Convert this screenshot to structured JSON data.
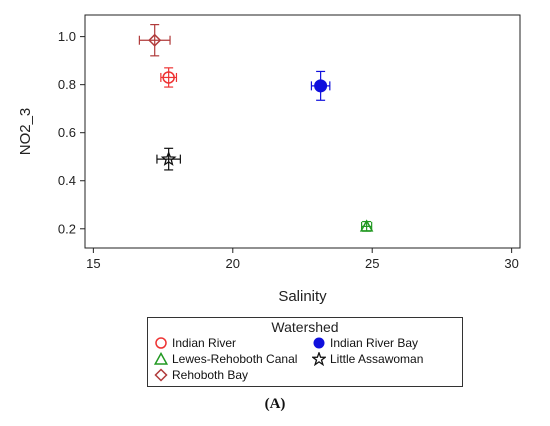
{
  "chart_data": {
    "type": "scatter",
    "xlabel": "Salinity",
    "ylabel": "NO2_3",
    "xlim": [
      14.7,
      30.3
    ],
    "ylim": [
      0.12,
      1.09
    ],
    "xticks": [
      15,
      20,
      25,
      30
    ],
    "yticks": [
      0.2,
      0.4,
      0.6,
      0.8,
      1.0
    ],
    "xtick_labels": [
      "15",
      "20",
      "25",
      "30"
    ],
    "ytick_labels": [
      "0.2",
      "0.4",
      "0.6",
      "0.8",
      "1.0"
    ],
    "grid": false,
    "series": [
      {
        "name": "Indian River",
        "marker": "open-circle",
        "color": "#ee3333",
        "x": 17.7,
        "y": 0.83,
        "xerr": 0.28,
        "yerr": 0.04
      },
      {
        "name": "Indian River Bay",
        "marker": "filled-circle",
        "color": "#1010dd",
        "x": 23.15,
        "y": 0.795,
        "xerr": 0.33,
        "yerr": 0.06
      },
      {
        "name": "Lewes-Rehoboth Canal",
        "marker": "open-triangle",
        "color": "#229922",
        "x": 24.8,
        "y": 0.21,
        "xerr": 0.18,
        "yerr": 0.02
      },
      {
        "name": "Little Assawoman",
        "marker": "open-star",
        "color": "#111111",
        "x": 17.7,
        "y": 0.49,
        "xerr": 0.42,
        "yerr": 0.045
      },
      {
        "name": "Rehoboth Bay",
        "marker": "open-diamond",
        "color": "#b03a3a",
        "x": 17.2,
        "y": 0.985,
        "xerr": 0.55,
        "yerr": 0.065
      }
    ],
    "legend": {
      "title": "Watershed",
      "placement": "bottom"
    }
  },
  "caption": "(A)"
}
